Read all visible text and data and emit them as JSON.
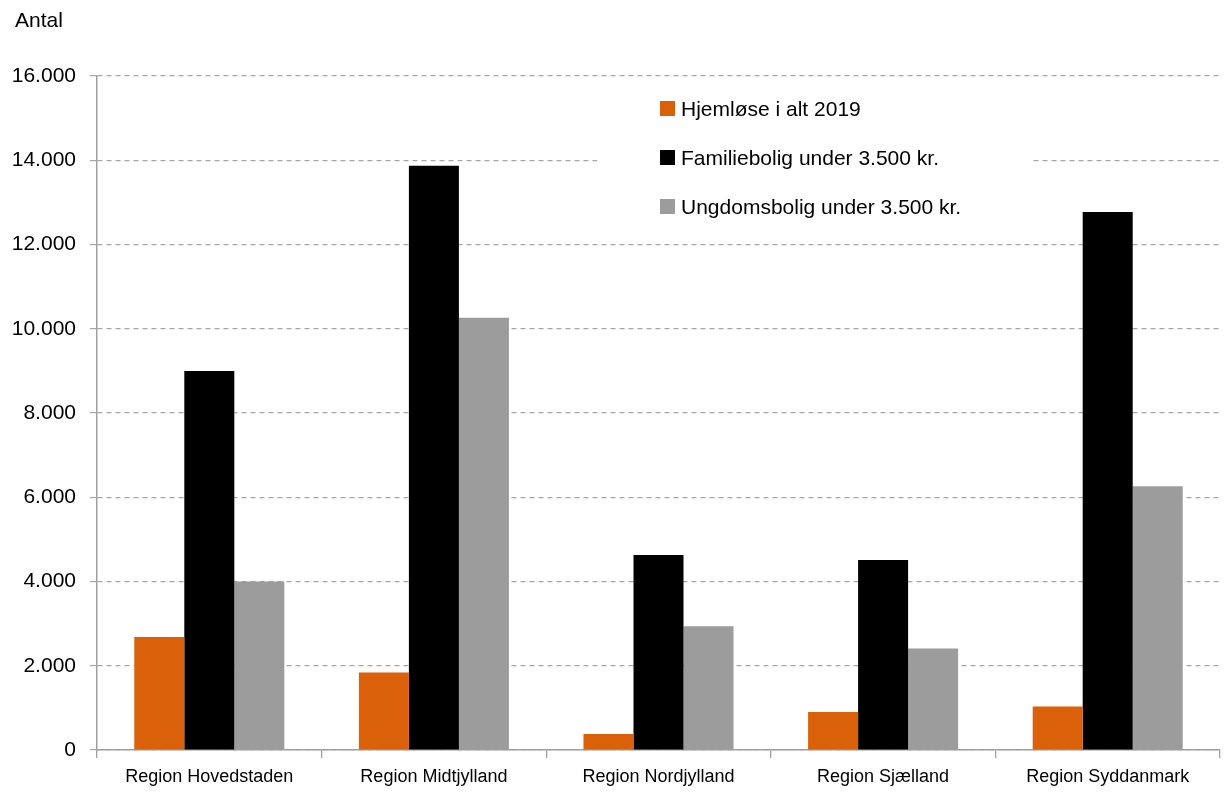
{
  "chart_data": {
    "type": "bar",
    "ylabel": "Antal",
    "categories": [
      "Region Hovedstaden",
      "Region Midtjylland",
      "Region Nordjylland",
      "Region Sjælland",
      "Region Syddanmark"
    ],
    "series": [
      {
        "name": "Hjemløse i alt 2019",
        "color": "#da600a",
        "values": [
          2680,
          1840,
          380,
          900,
          1030
        ]
      },
      {
        "name": "Familiebolig under 3.500 kr.",
        "color": "#000000",
        "values": [
          9000,
          13870,
          4630,
          4510,
          12770
        ]
      },
      {
        "name": "Ungdomsbolig under 3.500 kr.",
        "color": "#9c9c9c",
        "values": [
          4000,
          10260,
          2940,
          2410,
          6260
        ]
      }
    ],
    "ylim": [
      0,
      16000
    ],
    "yticks": [
      0,
      {
        "value": 2000,
        "label": "2.000"
      },
      {
        "value": 4000,
        "label": "4.000"
      },
      {
        "value": 6000,
        "label": "6.000"
      },
      {
        "value": 8000,
        "label": "8.000"
      },
      {
        "value": 10000,
        "label": "10.000"
      },
      {
        "value": 12000,
        "label": "12.000"
      },
      {
        "value": 14000,
        "label": "14.000"
      },
      {
        "value": 16000,
        "label": "16.000"
      }
    ],
    "grid": "y",
    "legend": "top right"
  }
}
